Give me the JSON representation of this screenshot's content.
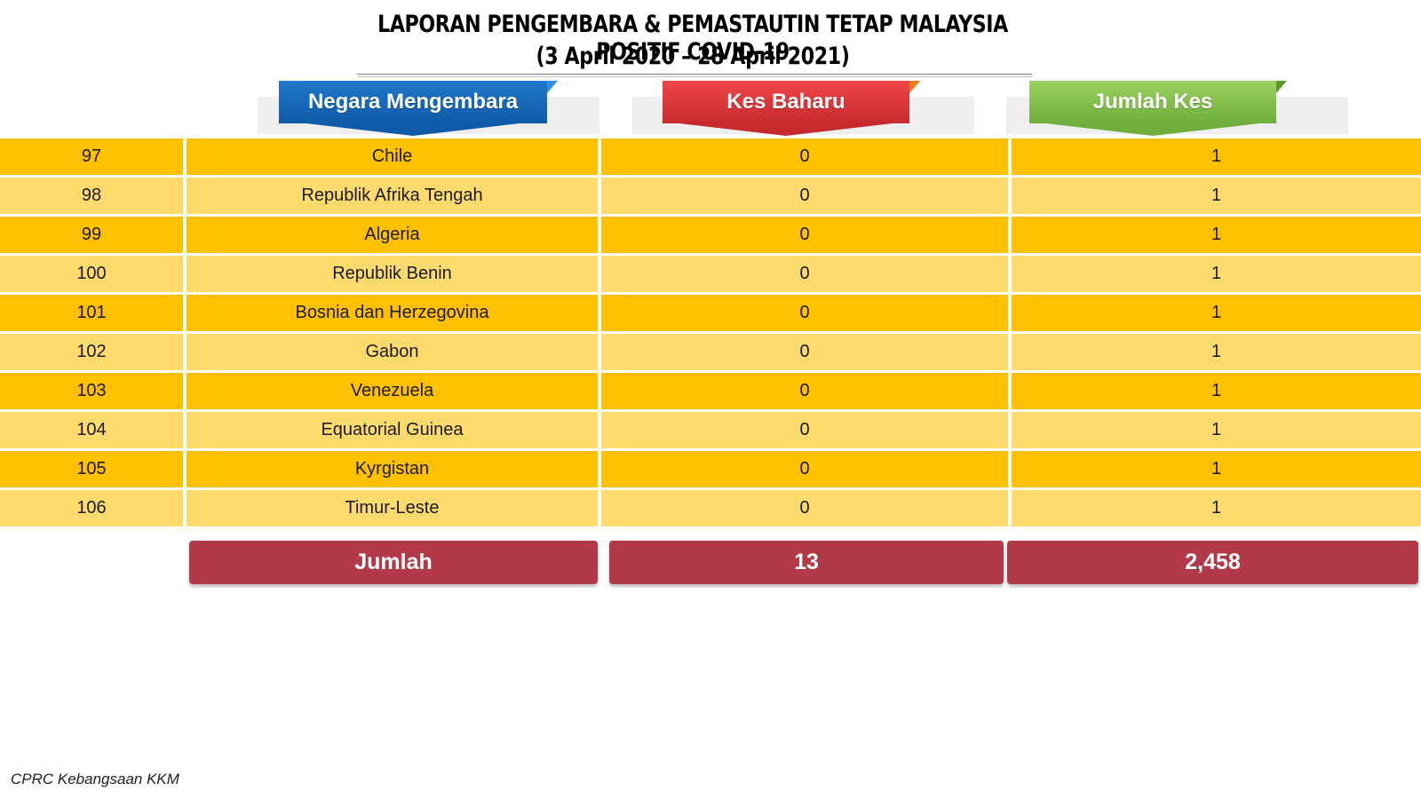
{
  "title": {
    "line1": "LAPORAN PENGEMBARA & PEMASTAUTIN TETAP MALAYSIA POSITIF COVID-19",
    "line2": "(3 April 2020 – 28 April  2021)"
  },
  "headers": {
    "country": "Negara Mengembara",
    "new_cases": "Kes Baharu",
    "total_cases": "Jumlah Kes"
  },
  "colors": {
    "row_dark": "#ffc000",
    "row_light": "#ffdb6e",
    "header_country": "#0f5aa8",
    "header_new": "#c72a2e",
    "header_total": "#6fae3a",
    "totals_bar": "#b23a48"
  },
  "rows": [
    {
      "no": "97",
      "country": "Chile",
      "new": "0",
      "total": "1"
    },
    {
      "no": "98",
      "country": "Republik Afrika Tengah",
      "new": "0",
      "total": "1"
    },
    {
      "no": "99",
      "country": "Algeria",
      "new": "0",
      "total": "1"
    },
    {
      "no": "100",
      "country": "Republik Benin",
      "new": "0",
      "total": "1"
    },
    {
      "no": "101",
      "country": "Bosnia dan Herzegovina",
      "new": "0",
      "total": "1"
    },
    {
      "no": "102",
      "country": "Gabon",
      "new": "0",
      "total": "1"
    },
    {
      "no": "103",
      "country": "Venezuela",
      "new": "0",
      "total": "1"
    },
    {
      "no": "104",
      "country": "Equatorial Guinea",
      "new": "0",
      "total": "1"
    },
    {
      "no": "105",
      "country": "Kyrgistan",
      "new": "0",
      "total": "1"
    },
    {
      "no": "106",
      "country": "Timur-Leste",
      "new": "0",
      "total": "1"
    }
  ],
  "totals": {
    "label": "Jumlah",
    "new": "13",
    "total": "2,458"
  },
  "footer": "CPRC Kebangsaan KKM"
}
